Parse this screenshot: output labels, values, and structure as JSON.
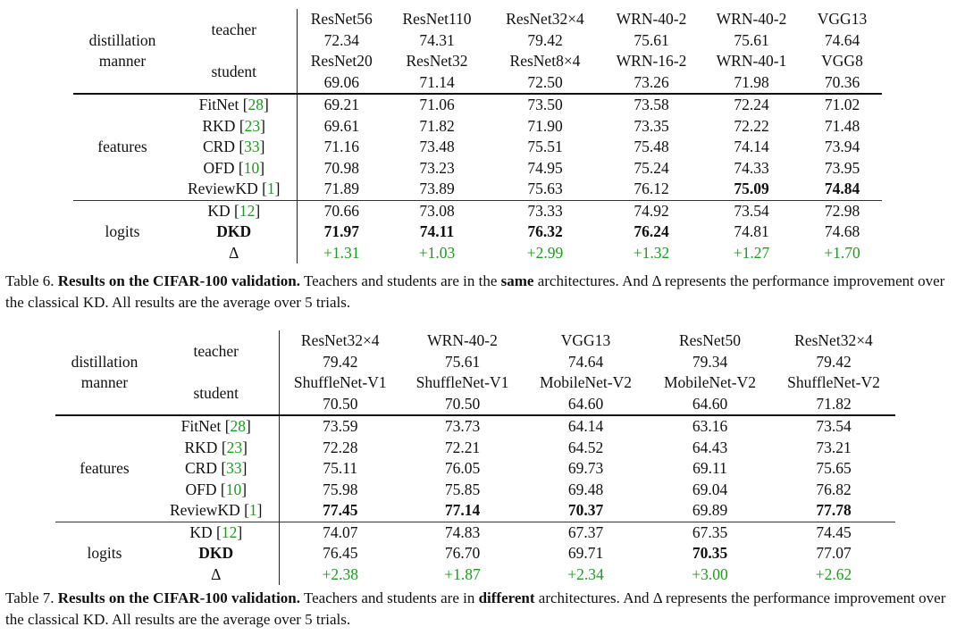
{
  "t6": {
    "header": {
      "manner_label": [
        "distillation",
        "manner"
      ],
      "teacher_label": "teacher",
      "student_label": "student",
      "teachers": [
        [
          "ResNet56",
          "72.34"
        ],
        [
          "ResNet110",
          "74.31"
        ],
        [
          "ResNet32×4",
          "79.42"
        ],
        [
          "WRN-40-2",
          "75.61"
        ],
        [
          "WRN-40-2",
          "75.61"
        ],
        [
          "VGG13",
          "74.64"
        ]
      ],
      "students": [
        [
          "ResNet20",
          "69.06"
        ],
        [
          "ResNet32",
          "71.14"
        ],
        [
          "ResNet8×4",
          "72.50"
        ],
        [
          "WRN-16-2",
          "73.26"
        ],
        [
          "WRN-40-1",
          "71.98"
        ],
        [
          "VGG8",
          "70.36"
        ]
      ]
    },
    "features_label": "features",
    "logits_label": "logits",
    "feature_rows": [
      {
        "name": "FitNet",
        "cite": "28",
        "values": [
          "69.21",
          "71.06",
          "73.50",
          "73.58",
          "72.24",
          "71.02"
        ],
        "bold": []
      },
      {
        "name": "RKD",
        "cite": "23",
        "values": [
          "69.61",
          "71.82",
          "71.90",
          "73.35",
          "72.22",
          "71.48"
        ],
        "bold": []
      },
      {
        "name": "CRD",
        "cite": "33",
        "values": [
          "71.16",
          "73.48",
          "75.51",
          "75.48",
          "74.14",
          "73.94"
        ],
        "bold": []
      },
      {
        "name": "OFD",
        "cite": "10",
        "values": [
          "70.98",
          "73.23",
          "74.95",
          "75.24",
          "74.33",
          "73.95"
        ],
        "bold": []
      },
      {
        "name": "ReviewKD",
        "cite": "1",
        "values": [
          "71.89",
          "73.89",
          "75.63",
          "76.12",
          "75.09",
          "74.84"
        ],
        "bold": [
          4,
          5
        ]
      }
    ],
    "logit_rows": [
      {
        "name": "KD",
        "cite": "12",
        "values": [
          "70.66",
          "73.08",
          "73.33",
          "74.92",
          "73.54",
          "72.98"
        ],
        "bold": []
      },
      {
        "name": "DKD",
        "cite": "",
        "name_bold": true,
        "values": [
          "71.97",
          "74.11",
          "76.32",
          "76.24",
          "74.81",
          "74.68"
        ],
        "bold": [
          0,
          1,
          2,
          3
        ]
      },
      {
        "name": "Δ",
        "cite": "",
        "delta": true,
        "values": [
          "+1.31",
          "+1.03",
          "+2.99",
          "+1.32",
          "+1.27",
          "+1.70"
        ],
        "bold": []
      }
    ],
    "caption": {
      "prefix": "Table 6. ",
      "bold_title": "Results on the CIFAR-100 validation.",
      "text_a": " Teachers and students are in the ",
      "bold_word": "same",
      "text_b": " architectures. And Δ represents the performance improvement over the classical KD. All results are the average over 5 trials."
    }
  },
  "t7": {
    "header": {
      "manner_label": [
        "distillation",
        "manner"
      ],
      "teacher_label": "teacher",
      "student_label": "student",
      "teachers": [
        [
          "ResNet32×4",
          "79.42"
        ],
        [
          "WRN-40-2",
          "75.61"
        ],
        [
          "VGG13",
          "74.64"
        ],
        [
          "ResNet50",
          "79.34"
        ],
        [
          "ResNet32×4",
          "79.42"
        ]
      ],
      "students": [
        [
          "ShuffleNet-V1",
          "70.50"
        ],
        [
          "ShuffleNet-V1",
          "70.50"
        ],
        [
          "MobileNet-V2",
          "64.60"
        ],
        [
          "MobileNet-V2",
          "64.60"
        ],
        [
          "ShuffleNet-V2",
          "71.82"
        ]
      ]
    },
    "features_label": "features",
    "logits_label": "logits",
    "feature_rows": [
      {
        "name": "FitNet",
        "cite": "28",
        "values": [
          "73.59",
          "73.73",
          "64.14",
          "63.16",
          "73.54"
        ],
        "bold": []
      },
      {
        "name": "RKD",
        "cite": "23",
        "values": [
          "72.28",
          "72.21",
          "64.52",
          "64.43",
          "73.21"
        ],
        "bold": []
      },
      {
        "name": "CRD",
        "cite": "33",
        "values": [
          "75.11",
          "76.05",
          "69.73",
          "69.11",
          "75.65"
        ],
        "bold": []
      },
      {
        "name": "OFD",
        "cite": "10",
        "values": [
          "75.98",
          "75.85",
          "69.48",
          "69.04",
          "76.82"
        ],
        "bold": []
      },
      {
        "name": "ReviewKD",
        "cite": "1",
        "values": [
          "77.45",
          "77.14",
          "70.37",
          "69.89",
          "77.78"
        ],
        "bold": [
          0,
          1,
          2,
          4
        ]
      }
    ],
    "logit_rows": [
      {
        "name": "KD",
        "cite": "12",
        "values": [
          "74.07",
          "74.83",
          "67.37",
          "67.35",
          "74.45"
        ],
        "bold": []
      },
      {
        "name": "DKD",
        "cite": "",
        "name_bold": true,
        "values": [
          "76.45",
          "76.70",
          "69.71",
          "70.35",
          "77.07"
        ],
        "bold": [
          3
        ]
      },
      {
        "name": "Δ",
        "cite": "",
        "delta": true,
        "values": [
          "+2.38",
          "+1.87",
          "+2.34",
          "+3.00",
          "+2.62"
        ],
        "bold": []
      }
    ],
    "caption": {
      "prefix": "Table 7. ",
      "bold_title": "Results on the CIFAR-100 validation.",
      "text_a": " Teachers and students are in ",
      "bold_word": "different",
      "text_b": " architectures. And Δ represents the performance improvement over the classical KD. All results are the average over 5 trials."
    }
  }
}
